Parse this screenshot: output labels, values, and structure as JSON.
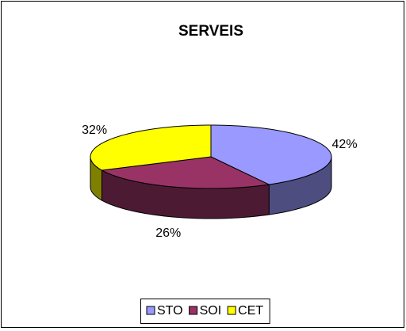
{
  "chart_data": {
    "type": "pie",
    "title": "SERVEIS",
    "categories": [
      "STO",
      "SOI",
      "CET"
    ],
    "values": [
      42,
      26,
      32
    ],
    "value_labels": [
      "42%",
      "26%",
      "32%"
    ],
    "colors": [
      "#9999ff",
      "#993366",
      "#ffff00"
    ],
    "legend": "bottom"
  }
}
